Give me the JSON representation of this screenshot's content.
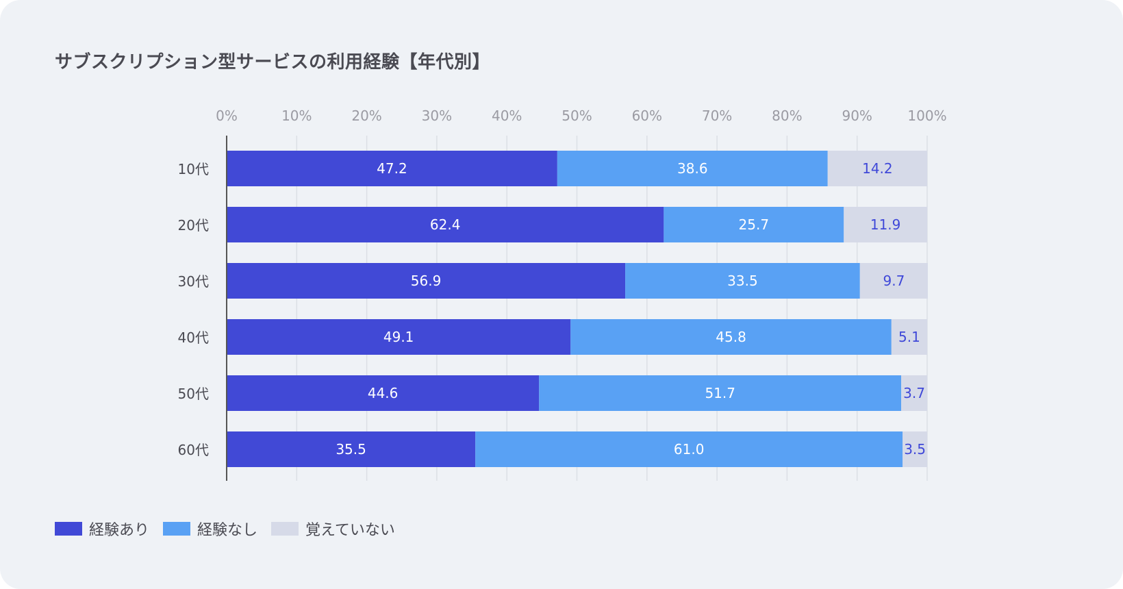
{
  "title": "サブスクリプション型サービスの利用経験【年代別】",
  "colors": {
    "background": "#eff2f6",
    "grid": "#dcdfe5",
    "axis": "#555555",
    "tick_text": "#9a9aa2",
    "category_text": "#4a4a52",
    "label_on_dark": "#ffffff",
    "label_on_light": "#3f48d8"
  },
  "chart_data": {
    "type": "bar",
    "orientation": "horizontal",
    "stacked": true,
    "title": "サブスクリプション型サービスの利用経験【年代別】",
    "categories": [
      "10代",
      "20代",
      "30代",
      "40代",
      "50代",
      "60代"
    ],
    "xlim": [
      0,
      100
    ],
    "x_ticks": [
      "0%",
      "10%",
      "20%",
      "30%",
      "40%",
      "50%",
      "60%",
      "70%",
      "80%",
      "90%",
      "100%"
    ],
    "grid": true,
    "legend_position": "bottom-left",
    "series": [
      {
        "name": "経験あり",
        "color": "#4149d6",
        "label_color": "#ffffff",
        "values": [
          47.2,
          62.4,
          56.9,
          49.1,
          44.6,
          35.5
        ],
        "labels": [
          "47.2",
          "62.4",
          "56.9",
          "49.1",
          "44.6",
          "35.5"
        ]
      },
      {
        "name": "経験なし",
        "color": "#59a1f4",
        "label_color": "#ffffff",
        "values": [
          38.6,
          25.7,
          33.5,
          45.8,
          51.7,
          61.0
        ],
        "labels": [
          "38.6",
          "25.7",
          "33.5",
          "45.8",
          "51.7",
          "61.0"
        ]
      },
      {
        "name": "覚えていない",
        "color": "#d6dae8",
        "label_color": "#3f48d8",
        "values": [
          14.2,
          11.9,
          9.7,
          5.1,
          3.7,
          3.5
        ],
        "labels": [
          "14.2",
          "11.9",
          "9.7",
          "5.1",
          "3.7",
          "3.5"
        ]
      }
    ]
  }
}
